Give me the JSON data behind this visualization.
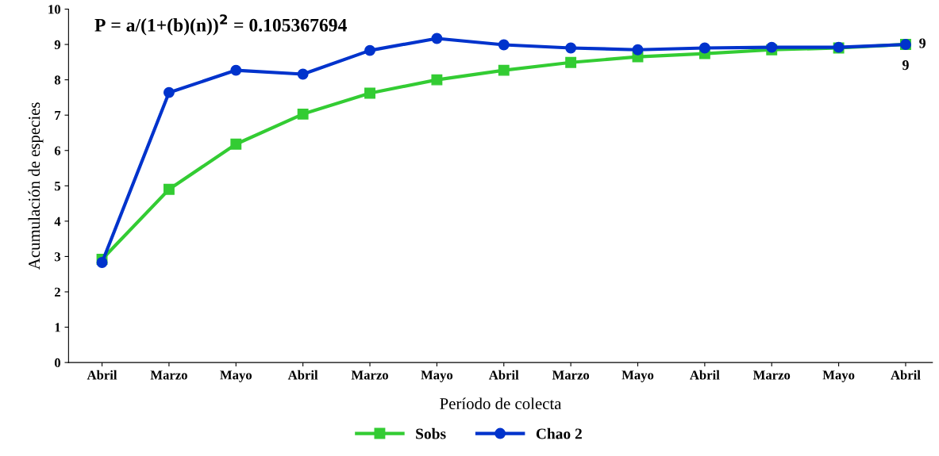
{
  "chart_data": {
    "type": "line",
    "xlabel": "Período de colecta",
    "ylabel": "Acumulación de especies",
    "categories": [
      "Abril",
      "Marzo",
      "Mayo",
      "Abril",
      "Marzo",
      "Mayo",
      "Abril",
      "Marzo",
      "Mayo",
      "Abril",
      "Marzo",
      "Mayo",
      "Abril"
    ],
    "series": [
      {
        "name": "Sobs",
        "color": "#33cc33",
        "marker": "square",
        "values": [
          2.92,
          4.9,
          6.18,
          7.03,
          7.62,
          8.0,
          8.27,
          8.49,
          8.65,
          8.74,
          8.85,
          8.9,
          9
        ],
        "value_labels": [
          null,
          null,
          null,
          null,
          null,
          null,
          null,
          null,
          null,
          null,
          null,
          null,
          "9"
        ]
      },
      {
        "name": "Chao 2",
        "color": "#0033cc",
        "marker": "circle",
        "values": [
          2.83,
          7.64,
          8.27,
          8.16,
          8.83,
          9.17,
          8.99,
          8.9,
          8.85,
          8.9,
          8.92,
          8.92,
          9
        ],
        "value_labels": [
          null,
          null,
          null,
          null,
          null,
          null,
          null,
          null,
          null,
          null,
          null,
          null,
          "9"
        ]
      }
    ],
    "ylim": [
      0,
      10
    ],
    "yticks": [
      0,
      1,
      2,
      3,
      4,
      5,
      6,
      7,
      8,
      9,
      10
    ],
    "annotations": [
      "P = a/(1+(b)(n))$^{2}$ = 0.105367694"
    ],
    "legend": "bottom",
    "grid": false
  }
}
